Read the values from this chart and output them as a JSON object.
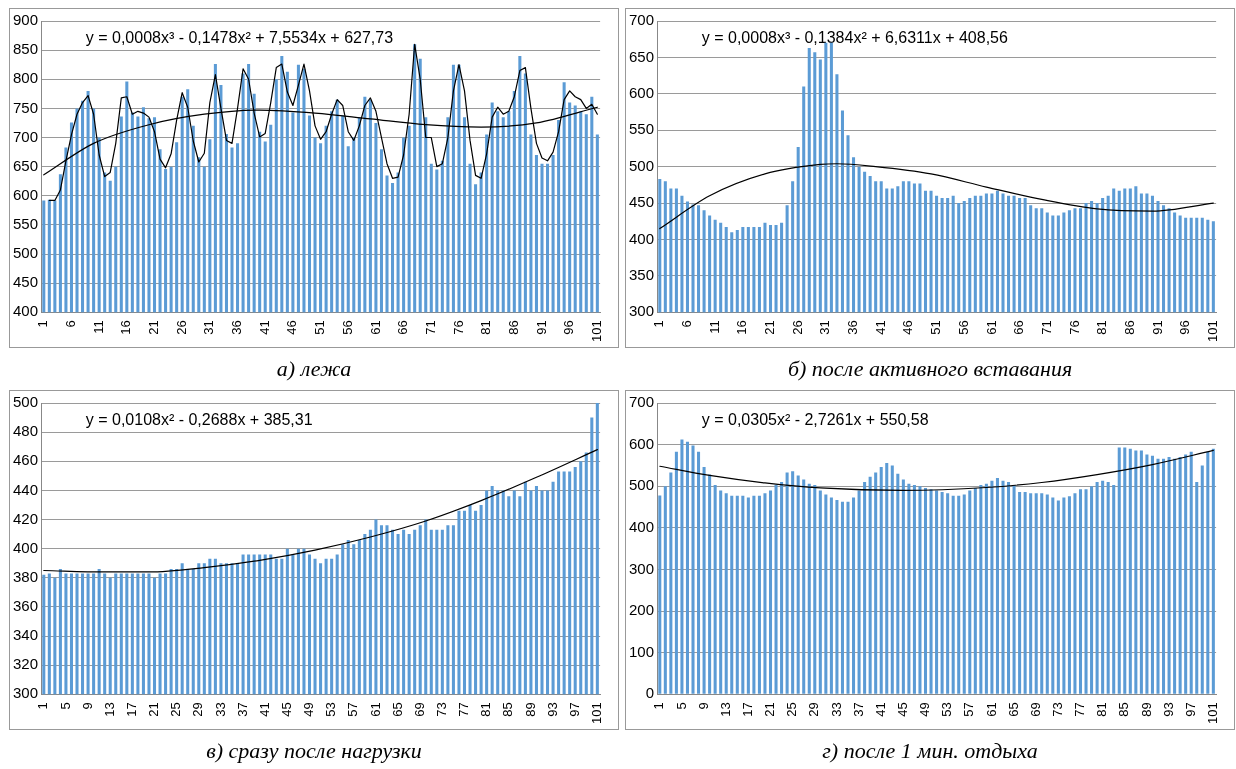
{
  "chart_data": [
    {
      "type": "bar",
      "title": "а) лежа",
      "annotations": [
        "y = 0,0008x³ - 0,1478x² + 7,5534x + 627,73"
      ],
      "xlim": [
        0.5,
        101.5
      ],
      "xticks": [
        1,
        6,
        11,
        16,
        21,
        26,
        31,
        36,
        41,
        46,
        51,
        56,
        61,
        66,
        71,
        76,
        81,
        86,
        91,
        96,
        101
      ],
      "ylim": [
        400,
        900
      ],
      "yticks": [
        400,
        450,
        500,
        550,
        600,
        650,
        700,
        750,
        800,
        850,
        900
      ],
      "grid": "y",
      "x": [
        1,
        2,
        3,
        4,
        5,
        6,
        7,
        8,
        9,
        10,
        11,
        12,
        13,
        14,
        15,
        16,
        17,
        18,
        19,
        20,
        21,
        22,
        23,
        24,
        25,
        26,
        27,
        28,
        29,
        30,
        31,
        32,
        33,
        34,
        35,
        36,
        37,
        38,
        39,
        40,
        41,
        42,
        43,
        44,
        45,
        46,
        47,
        48,
        49,
        50,
        51,
        52,
        53,
        54,
        55,
        56,
        57,
        58,
        59,
        60,
        61,
        62,
        63,
        64,
        65,
        66,
        67,
        68,
        69,
        70,
        71,
        72,
        73,
        74,
        75,
        76,
        77,
        78,
        79,
        80,
        81,
        82,
        83,
        84,
        85,
        86,
        87,
        88,
        89,
        90,
        91,
        92,
        93,
        94,
        95,
        96,
        97,
        98,
        99,
        100,
        101
      ],
      "series": [
        {
          "color": "#5b9bd5",
          "values": [
            592,
            593,
            592,
            637,
            683,
            726,
            750,
            763,
            780,
            750,
            700,
            640,
            626,
            650,
            736,
            796,
            743,
            736,
            752,
            733,
            735,
            680,
            646,
            650,
            692,
            770,
            783,
            720,
            666,
            650,
            697,
            826,
            790,
            706,
            683,
            690,
            810,
            826,
            775,
            710,
            693,
            722,
            800,
            840,
            813,
            743,
            825,
            818,
            738,
            700,
            690,
            720,
            745,
            765,
            738,
            685,
            700,
            735,
            770,
            765,
            725,
            680,
            635,
            622,
            640,
            700,
            720,
            860,
            835,
            735,
            655,
            645,
            660,
            735,
            825,
            825,
            735,
            655,
            620,
            640,
            705,
            760,
            745,
            735,
            745,
            780,
            840,
            810,
            705,
            670,
            655,
            655,
            670,
            730,
            795,
            760,
            755,
            745,
            740,
            770,
            705
          ]
        },
        {
          "type": "line",
          "color": "#000000",
          "x": [
            2,
            3,
            4,
            5,
            6,
            7,
            8,
            9,
            10,
            11,
            12,
            13,
            14,
            15,
            16,
            17,
            18,
            19,
            20,
            21,
            22,
            23,
            24,
            25,
            26,
            27,
            28,
            29,
            30,
            31,
            32,
            33,
            34,
            35,
            36,
            37,
            38,
            39,
            40,
            41,
            42,
            43,
            44,
            45,
            46,
            47,
            48,
            49,
            50,
            51,
            52,
            53,
            54,
            55,
            56,
            57,
            58,
            59,
            60,
            61,
            62,
            63,
            64,
            65,
            66,
            67,
            68,
            69,
            70,
            71,
            72,
            73,
            74,
            75,
            76,
            77,
            78,
            79,
            80,
            81,
            82,
            83,
            84,
            85,
            86,
            87,
            88,
            89,
            90,
            91,
            92,
            93,
            94,
            95,
            96,
            97,
            98,
            99,
            100,
            101
          ],
          "values": [
            592,
            592,
            610,
            660,
            705,
            740,
            760,
            772,
            740,
            670,
            633,
            640,
            690,
            768,
            770,
            740,
            745,
            742,
            735,
            710,
            663,
            648,
            672,
            730,
            777,
            752,
            694,
            658,
            673,
            760,
            808,
            750,
            695,
            690,
            750,
            818,
            800,
            742,
            701,
            707,
            760,
            820,
            826,
            778,
            755,
            790,
            826,
            780,
            720,
            697,
            710,
            740,
            765,
            755,
            710,
            695,
            720,
            755,
            768,
            745,
            700,
            655,
            630,
            632,
            670,
            740,
            860,
            800,
            700,
            700,
            650,
            655,
            700,
            780,
            825,
            780,
            695,
            635,
            630,
            672,
            735,
            752,
            740,
            745,
            770,
            815,
            820,
            750,
            690,
            665,
            660,
            675,
            710,
            765,
            780,
            770,
            765,
            750,
            757,
            740
          ]
        },
        {
          "type": "line",
          "color": "#000000",
          "x": [
            1,
            10,
            20,
            30,
            40,
            50,
            60,
            70,
            80,
            90,
            101
          ],
          "values": [
            636,
            690,
            722,
            740,
            747,
            742,
            732,
            722,
            718,
            725,
            752
          ]
        }
      ]
    },
    {
      "type": "bar",
      "title": "б) после активного вставания",
      "annotations": [
        "y = 0,0008x³ - 0,1384x² + 6,6311x + 408,56"
      ],
      "xlim": [
        0.5,
        101.5
      ],
      "xticks": [
        1,
        6,
        11,
        16,
        21,
        26,
        31,
        36,
        41,
        46,
        51,
        56,
        61,
        66,
        71,
        76,
        81,
        86,
        91,
        96,
        101
      ],
      "ylim": [
        300,
        700
      ],
      "yticks": [
        300,
        350,
        400,
        450,
        500,
        550,
        600,
        650,
        700
      ],
      "grid": "y",
      "x": [
        1,
        2,
        3,
        4,
        5,
        6,
        7,
        8,
        9,
        10,
        11,
        12,
        13,
        14,
        15,
        16,
        17,
        18,
        19,
        20,
        21,
        22,
        23,
        24,
        25,
        26,
        27,
        28,
        29,
        30,
        31,
        32,
        33,
        34,
        35,
        36,
        37,
        38,
        39,
        40,
        41,
        42,
        43,
        44,
        45,
        46,
        47,
        48,
        49,
        50,
        51,
        52,
        53,
        54,
        55,
        56,
        57,
        58,
        59,
        60,
        61,
        62,
        63,
        64,
        65,
        66,
        67,
        68,
        69,
        70,
        71,
        72,
        73,
        74,
        75,
        76,
        77,
        78,
        79,
        80,
        81,
        82,
        83,
        84,
        85,
        86,
        87,
        88,
        89,
        90,
        91,
        92,
        93,
        94,
        95,
        96,
        97,
        98,
        99,
        100,
        101
      ],
      "series": [
        {
          "color": "#5b9bd5",
          "values": [
            483,
            480,
            470,
            470,
            460,
            452,
            448,
            447,
            440,
            433,
            427,
            423,
            417,
            410,
            413,
            417,
            417,
            417,
            417,
            423,
            420,
            420,
            423,
            447,
            480,
            527,
            610,
            663,
            657,
            647,
            670,
            670,
            627,
            577,
            543,
            513,
            500,
            493,
            487,
            480,
            480,
            470,
            470,
            473,
            480,
            480,
            477,
            477,
            467,
            467,
            460,
            457,
            457,
            460,
            450,
            453,
            457,
            460,
            460,
            463,
            463,
            467,
            463,
            460,
            460,
            457,
            457,
            447,
            443,
            443,
            437,
            433,
            433,
            437,
            440,
            443,
            443,
            450,
            453,
            450,
            457,
            460,
            470,
            467,
            470,
            470,
            473,
            463,
            463,
            460,
            453,
            447,
            443,
            437,
            433,
            430,
            430,
            430,
            430,
            427,
            425
          ]
        },
        {
          "type": "line",
          "color": "#000000",
          "x": [
            1,
            10,
            20,
            30,
            33,
            40,
            50,
            60,
            70,
            80,
            90,
            101
          ],
          "values": [
            415,
            460,
            490,
            503,
            504,
            500,
            490,
            472,
            455,
            442,
            439,
            450
          ]
        }
      ]
    },
    {
      "type": "bar",
      "title": "в) сразу после нагрузки",
      "annotations": [
        "y = 0,0108x² - 0,2688x + 385,31"
      ],
      "xlim": [
        0.5,
        101.5
      ],
      "xticks": [
        1,
        5,
        9,
        13,
        17,
        21,
        25,
        29,
        33,
        37,
        41,
        45,
        49,
        53,
        57,
        61,
        65,
        69,
        73,
        77,
        81,
        85,
        89,
        93,
        97,
        101
      ],
      "ylim": [
        300,
        500
      ],
      "yticks": [
        300,
        320,
        340,
        360,
        380,
        400,
        420,
        440,
        460,
        480,
        500
      ],
      "grid": "y",
      "x": [
        1,
        2,
        3,
        4,
        5,
        6,
        7,
        8,
        9,
        10,
        11,
        12,
        13,
        14,
        15,
        16,
        17,
        18,
        19,
        20,
        21,
        22,
        23,
        24,
        25,
        26,
        27,
        28,
        29,
        30,
        31,
        32,
        33,
        34,
        35,
        36,
        37,
        38,
        39,
        40,
        41,
        42,
        43,
        44,
        45,
        46,
        47,
        48,
        49,
        50,
        51,
        52,
        53,
        54,
        55,
        56,
        57,
        58,
        59,
        60,
        61,
        62,
        63,
        64,
        65,
        66,
        67,
        68,
        69,
        70,
        71,
        72,
        73,
        74,
        75,
        76,
        77,
        78,
        79,
        80,
        81,
        82,
        83,
        84,
        85,
        86,
        87,
        88,
        89,
        90,
        91,
        92,
        93,
        94,
        95,
        96,
        97,
        98,
        99,
        100,
        101
      ],
      "series": [
        {
          "color": "#5b9bd5",
          "values": [
            382,
            383,
            380,
            386,
            383,
            383,
            383,
            383,
            383,
            383,
            386,
            383,
            380,
            383,
            383,
            383,
            383,
            383,
            383,
            383,
            380,
            383,
            383,
            386,
            386,
            390,
            386,
            386,
            390,
            390,
            393,
            393,
            390,
            390,
            390,
            390,
            396,
            396,
            396,
            396,
            396,
            396,
            393,
            393,
            400,
            396,
            400,
            400,
            396,
            393,
            390,
            393,
            393,
            396,
            403,
            406,
            403,
            406,
            410,
            413,
            420,
            416,
            416,
            413,
            410,
            413,
            410,
            413,
            416,
            420,
            413,
            413,
            413,
            416,
            416,
            426,
            426,
            430,
            426,
            430,
            440,
            443,
            440,
            440,
            436,
            440,
            436,
            446,
            440,
            443,
            440,
            440,
            446,
            453,
            453,
            453,
            456,
            460,
            466,
            490,
            500
          ]
        },
        {
          "type": "line",
          "color": "#000000",
          "x": [
            1,
            12,
            20,
            30,
            40,
            50,
            60,
            70,
            80,
            90,
            101
          ],
          "values": [
            385,
            384,
            384,
            387,
            392,
            399,
            408,
            419,
            433,
            449,
            468
          ]
        }
      ]
    },
    {
      "type": "bar",
      "title": "г) после 1 мин. отдыха",
      "annotations": [
        "y = 0,0305x² - 2,7261x + 550,58"
      ],
      "xlim": [
        0.5,
        101.5
      ],
      "xticks": [
        1,
        5,
        9,
        13,
        17,
        21,
        25,
        29,
        33,
        37,
        41,
        45,
        49,
        53,
        57,
        61,
        65,
        69,
        73,
        77,
        81,
        85,
        89,
        93,
        97,
        101
      ],
      "ylim": [
        0,
        700
      ],
      "yticks": [
        0,
        100,
        200,
        300,
        400,
        500,
        600,
        700
      ],
      "grid": "y",
      "x": [
        1,
        2,
        3,
        4,
        5,
        6,
        7,
        8,
        9,
        10,
        11,
        12,
        13,
        14,
        15,
        16,
        17,
        18,
        19,
        20,
        21,
        22,
        23,
        24,
        25,
        26,
        27,
        28,
        29,
        30,
        31,
        32,
        33,
        34,
        35,
        36,
        37,
        38,
        39,
        40,
        41,
        42,
        43,
        44,
        45,
        46,
        47,
        48,
        49,
        50,
        51,
        52,
        53,
        54,
        55,
        56,
        57,
        58,
        59,
        60,
        61,
        62,
        63,
        64,
        65,
        66,
        67,
        68,
        69,
        70,
        71,
        72,
        73,
        74,
        75,
        76,
        77,
        78,
        79,
        80,
        81,
        82,
        83,
        84,
        85,
        86,
        87,
        88,
        89,
        90,
        91,
        92,
        93,
        94,
        95,
        96,
        97,
        98,
        99,
        100,
        101
      ],
      "series": [
        {
          "color": "#5b9bd5",
          "values": [
            478,
            500,
            533,
            583,
            612,
            607,
            598,
            583,
            546,
            528,
            503,
            490,
            483,
            477,
            477,
            477,
            473,
            477,
            477,
            483,
            490,
            503,
            510,
            533,
            536,
            526,
            516,
            506,
            503,
            490,
            480,
            473,
            467,
            463,
            463,
            473,
            490,
            510,
            523,
            533,
            546,
            556,
            550,
            530,
            516,
            506,
            503,
            500,
            496,
            493,
            490,
            486,
            483,
            477,
            477,
            480,
            490,
            496,
            503,
            506,
            513,
            520,
            513,
            510,
            503,
            486,
            486,
            483,
            483,
            483,
            480,
            473,
            466,
            473,
            476,
            483,
            493,
            493,
            500,
            510,
            513,
            510,
            503,
            593,
            593,
            590,
            586,
            586,
            576,
            573,
            566,
            566,
            570,
            566,
            570,
            576,
            583,
            510,
            550,
            583,
            590
          ]
        },
        {
          "type": "line",
          "color": "#000000",
          "x": [
            1,
            10,
            20,
            30,
            45,
            60,
            70,
            80,
            90,
            101
          ],
          "values": [
            548,
            526,
            508,
            496,
            490,
            497,
            509,
            528,
            552,
            586
          ]
        }
      ]
    }
  ]
}
